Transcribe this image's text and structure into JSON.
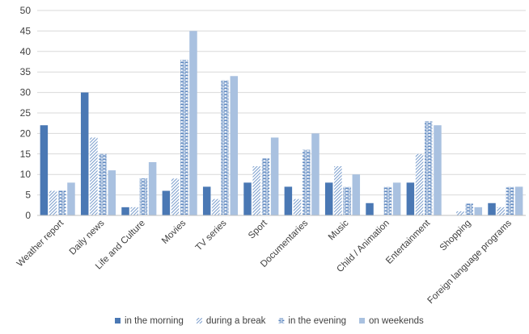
{
  "chart_data": {
    "type": "bar",
    "title": "",
    "xlabel": "",
    "ylabel": "",
    "ylim": [
      0,
      50
    ],
    "yticks": [
      0,
      5,
      10,
      15,
      20,
      25,
      30,
      35,
      40,
      45,
      50
    ],
    "grid": true,
    "legend_position": "bottom",
    "categories": [
      "Weather report",
      "Daily news",
      "Life and Culture",
      "Movies",
      "TV series",
      "Sport",
      "Documentaries",
      "Music",
      "Child / Animation",
      "Entertainment",
      "Shopping",
      "Foreign language programs"
    ],
    "series": [
      {
        "name": "in the morning",
        "color": "#4a78b4",
        "pattern": "solid",
        "values": [
          22,
          30,
          2,
          6,
          7,
          8,
          7,
          8,
          3,
          8,
          0,
          3
        ]
      },
      {
        "name": "during a break",
        "color": "#7fa1cf",
        "pattern": "diagonal",
        "values": [
          6,
          19,
          2,
          9,
          4,
          12,
          4,
          12,
          0,
          15,
          1,
          2
        ]
      },
      {
        "name": "in the evening",
        "color": "#5b86bf",
        "pattern": "brick",
        "values": [
          6,
          15,
          9,
          38,
          33,
          14,
          16,
          7,
          7,
          23,
          3,
          7
        ]
      },
      {
        "name": "on weekends",
        "color": "#a9c1e0",
        "pattern": "solid",
        "values": [
          8,
          11,
          13,
          45,
          34,
          19,
          20,
          10,
          8,
          22,
          2,
          7
        ]
      }
    ]
  }
}
